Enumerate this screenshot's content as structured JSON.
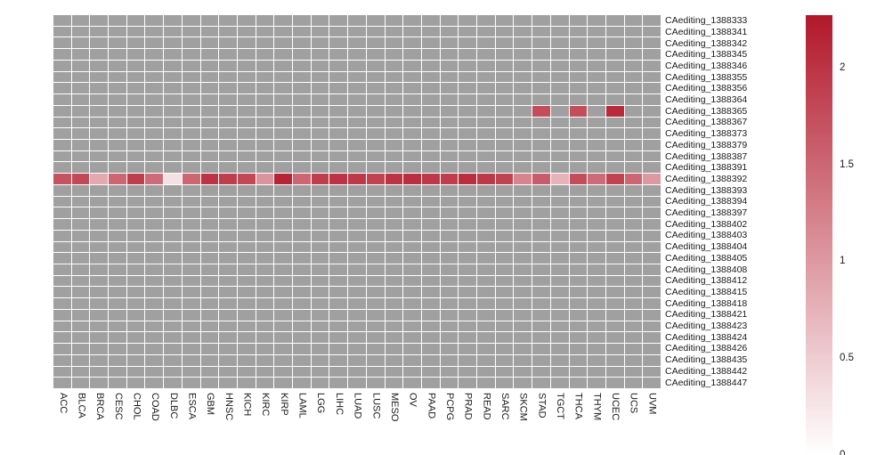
{
  "chart_data": {
    "type": "heatmap",
    "title": "",
    "rows": [
      "CAediting_1388333",
      "CAediting_1388341",
      "CAediting_1388342",
      "CAediting_1388345",
      "CAediting_1388346",
      "CAediting_1388355",
      "CAediting_1388356",
      "CAediting_1388364",
      "CAediting_1388365",
      "CAediting_1388367",
      "CAediting_1388373",
      "CAediting_1388379",
      "CAediting_1388387",
      "CAediting_1388391",
      "CAediting_1388392",
      "CAediting_1388393",
      "CAediting_1388394",
      "CAediting_1388397",
      "CAediting_1388402",
      "CAediting_1388403",
      "CAediting_1388404",
      "CAediting_1388405",
      "CAediting_1388408",
      "CAediting_1388412",
      "CAediting_1388415",
      "CAediting_1388418",
      "CAediting_1388421",
      "CAediting_1388423",
      "CAediting_1388424",
      "CAediting_1388426",
      "CAediting_1388435",
      "CAediting_1388442",
      "CAediting_1388447"
    ],
    "columns": [
      "ACC",
      "BLCA",
      "BRCA",
      "CESC",
      "CHOL",
      "COAD",
      "DLBC",
      "ESCA",
      "GBM",
      "HNSC",
      "KICH",
      "KIRC",
      "KIRP",
      "LAML",
      "LGG",
      "LIHC",
      "LUAD",
      "LUSC",
      "MESO",
      "OV",
      "PAAD",
      "PCPG",
      "PRAD",
      "READ",
      "SARC",
      "SKCM",
      "STAD",
      "TGCT",
      "THCA",
      "THYM",
      "UCEC",
      "UCS",
      "UVM"
    ],
    "values": {
      "CAediting_1388365": {
        "STAD": 1.75,
        "THCA": 1.75,
        "UCEC": 2.1
      },
      "CAediting_1388392": {
        "ACC": 1.7,
        "BLCA": 1.8,
        "BRCA": 0.85,
        "CESC": 1.5,
        "CHOL": 1.9,
        "COAD": 1.45,
        "DLBC": 0.3,
        "ESCA": 1.5,
        "GBM": 2.0,
        "HNSC": 1.9,
        "KICH": 1.8,
        "KIRC": 1.05,
        "KIRP": 2.15,
        "LAML": 1.5,
        "LGG": 1.9,
        "LIHC": 2.0,
        "LUAD": 1.95,
        "LUSC": 1.85,
        "MESO": 2.0,
        "OV": 2.05,
        "PAAD": 1.95,
        "PCPG": 1.9,
        "PRAD": 2.05,
        "READ": 1.95,
        "SARC": 1.85,
        "SKCM": 1.2,
        "STAD": 1.6,
        "TGCT": 0.75,
        "THCA": 1.75,
        "THYM": 1.45,
        "UCEC": 1.85,
        "UCS": 1.5,
        "UVM": 1.0
      }
    },
    "color_scale": {
      "min": 0,
      "max": 2.27,
      "min_color": "#ffffff",
      "max_color": "#b2182b",
      "na_color": "#a0a0a0",
      "grid_color": "#ffffff",
      "ticks": [
        2,
        1.5,
        1,
        0.5,
        0
      ],
      "tick_labels": [
        "2",
        "1.5",
        "1",
        "0.5",
        "0"
      ],
      "legend_position": "right"
    },
    "layout": {
      "grid": "on",
      "column_label_rotation": 90,
      "row_labels_side": "right",
      "column_labels_side": "bottom"
    }
  }
}
